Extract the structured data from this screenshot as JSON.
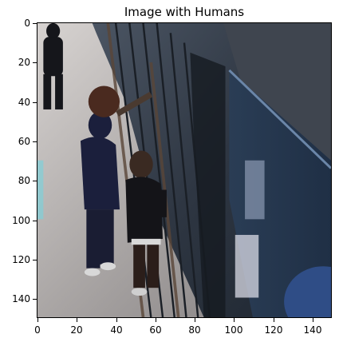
{
  "figure": {
    "title": "Image with Humans"
  },
  "axes": {
    "x_ticks": [
      "0",
      "20",
      "40",
      "60",
      "80",
      "100",
      "120",
      "140"
    ],
    "y_ticks": [
      "0",
      "20",
      "40",
      "60",
      "80",
      "100",
      "120",
      "140"
    ],
    "xlim": [
      0,
      150
    ],
    "ylim": [
      150,
      0
    ]
  },
  "image": {
    "description_colors": {
      "sidewalk": "#b9b4b2",
      "building_dark": "#2b3440",
      "panel_blue": "#2d4560",
      "people_dark": "#1b1e3a"
    }
  }
}
